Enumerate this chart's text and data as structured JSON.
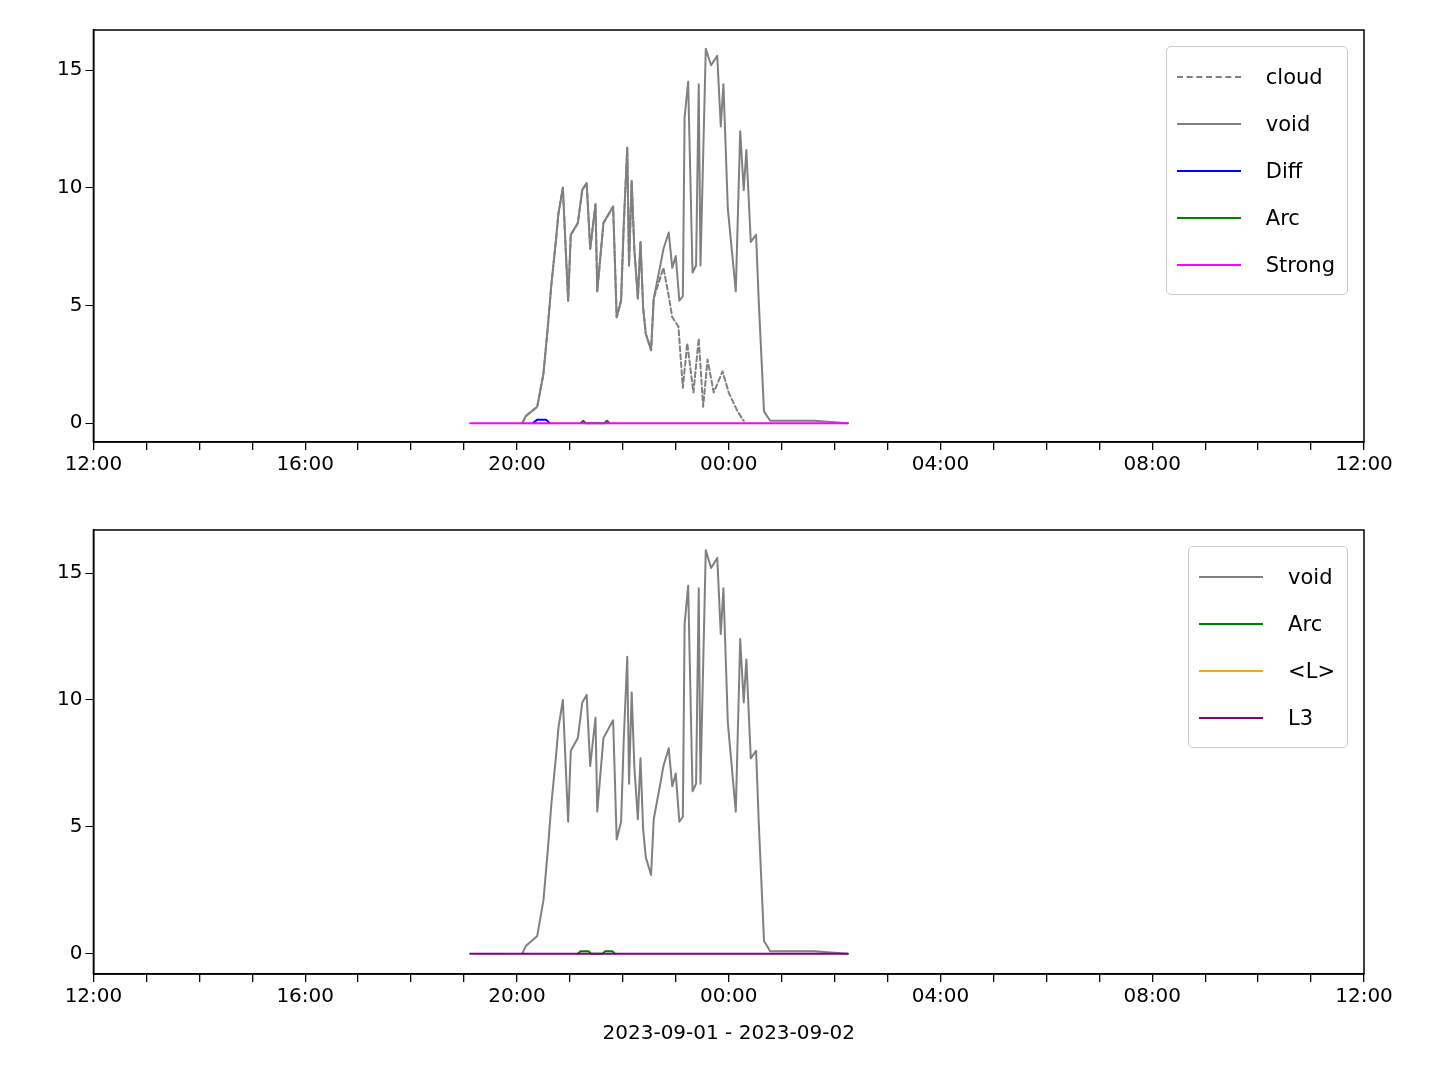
{
  "chart_data": [
    {
      "type": "line",
      "legend": "top right",
      "grid": false,
      "xlim": [
        "2023-09-01T12:00",
        "2023-09-02T12:00"
      ],
      "ylim": [
        -0.8,
        16.7
      ],
      "yticks": [
        0,
        5,
        10,
        15
      ],
      "xticks": [
        {
          "value": "2023-09-01T12:00",
          "label": "12:00"
        },
        {
          "value": "2023-09-01T13:00",
          "label": null
        },
        {
          "value": "2023-09-01T14:00",
          "label": null
        },
        {
          "value": "2023-09-01T15:00",
          "label": null
        },
        {
          "value": "2023-09-01T16:00",
          "label": "16:00"
        },
        {
          "value": "2023-09-01T17:00",
          "label": null
        },
        {
          "value": "2023-09-01T18:00",
          "label": null
        },
        {
          "value": "2023-09-01T19:00",
          "label": null
        },
        {
          "value": "2023-09-01T20:00",
          "label": "20:00"
        },
        {
          "value": "2023-09-01T21:00",
          "label": null
        },
        {
          "value": "2023-09-01T22:00",
          "label": null
        },
        {
          "value": "2023-09-01T23:00",
          "label": null
        },
        {
          "value": "2023-09-02T00:00",
          "label": "00:00"
        },
        {
          "value": "2023-09-02T01:00",
          "label": null
        },
        {
          "value": "2023-09-02T02:00",
          "label": null
        },
        {
          "value": "2023-09-02T03:00",
          "label": null
        },
        {
          "value": "2023-09-02T04:00",
          "label": "04:00"
        },
        {
          "value": "2023-09-02T05:00",
          "label": null
        },
        {
          "value": "2023-09-02T06:00",
          "label": null
        },
        {
          "value": "2023-09-02T07:00",
          "label": null
        },
        {
          "value": "2023-09-02T08:00",
          "label": "08:00"
        },
        {
          "value": "2023-09-02T09:00",
          "label": null
        },
        {
          "value": "2023-09-02T10:00",
          "label": null
        },
        {
          "value": "2023-09-02T11:00",
          "label": null
        },
        {
          "value": "2023-09-02T12:00",
          "label": "12:00"
        }
      ],
      "series": [
        {
          "name": "cloud",
          "color": "#808080",
          "line_style": "dashed",
          "x": [
            "2023-09-01T20:06",
            "2023-09-01T20:10",
            "2023-09-01T20:23",
            "2023-09-01T20:30",
            "2023-09-01T20:35",
            "2023-09-01T20:39",
            "2023-09-01T20:44",
            "2023-09-01T20:47",
            "2023-09-01T20:52",
            "2023-09-01T20:58",
            "2023-09-01T21:01",
            "2023-09-01T21:09",
            "2023-09-01T21:14",
            "2023-09-01T21:19",
            "2023-09-01T21:23",
            "2023-09-01T21:29",
            "2023-09-01T21:31",
            "2023-09-01T21:38",
            "2023-09-01T21:49",
            "2023-09-01T21:53",
            "2023-09-01T21:58",
            "2023-09-01T22:01",
            "2023-09-01T22:05",
            "2023-09-01T22:07",
            "2023-09-01T22:10",
            "2023-09-01T22:13",
            "2023-09-01T22:17",
            "2023-09-01T22:20",
            "2023-09-01T22:23",
            "2023-09-01T22:26",
            "2023-09-01T22:32",
            "2023-09-01T22:35",
            "2023-09-01T22:46",
            "2023-09-01T22:52",
            "2023-09-01T22:56",
            "2023-09-01T23:03",
            "2023-09-01T23:08",
            "2023-09-01T23:13",
            "2023-09-01T23:20",
            "2023-09-01T23:26",
            "2023-09-01T23:31",
            "2023-09-01T23:36",
            "2023-09-01T23:43",
            "2023-09-01T23:53",
            "2023-09-02T00:00",
            "2023-09-02T00:10",
            "2023-09-02T00:17"
          ],
          "values": [
            0,
            0.3,
            0.7,
            2.1,
            4.1,
            5.9,
            7.7,
            8.9,
            10.0,
            5.2,
            8.0,
            8.5,
            9.9,
            10.2,
            7.4,
            9.3,
            5.6,
            8.5,
            9.2,
            4.5,
            5.2,
            8.4,
            11.7,
            6.7,
            10.3,
            7.4,
            5.3,
            7.7,
            4.9,
            3.8,
            3.1,
            5.3,
            6.6,
            5.4,
            4.5,
            4.1,
            1.5,
            3.4,
            1.3,
            3.6,
            0.7,
            2.7,
            1.3,
            2.2,
            1.3,
            0.5,
            0.1
          ]
        },
        {
          "name": "void",
          "color": "#808080",
          "x": [
            "2023-09-01T20:06",
            "2023-09-01T20:10",
            "2023-09-01T20:23",
            "2023-09-01T20:30",
            "2023-09-01T20:35",
            "2023-09-01T20:39",
            "2023-09-01T20:44",
            "2023-09-01T20:47",
            "2023-09-01T20:52",
            "2023-09-01T20:58",
            "2023-09-01T21:01",
            "2023-09-01T21:09",
            "2023-09-01T21:14",
            "2023-09-01T21:19",
            "2023-09-01T21:23",
            "2023-09-01T21:29",
            "2023-09-01T21:31",
            "2023-09-01T21:38",
            "2023-09-01T21:49",
            "2023-09-01T21:53",
            "2023-09-01T21:58",
            "2023-09-01T22:01",
            "2023-09-01T22:05",
            "2023-09-01T22:07",
            "2023-09-01T22:10",
            "2023-09-01T22:13",
            "2023-09-01T22:17",
            "2023-09-01T22:20",
            "2023-09-01T22:23",
            "2023-09-01T22:26",
            "2023-09-01T22:32",
            "2023-09-01T22:35",
            "2023-09-01T22:43",
            "2023-09-01T22:46",
            "2023-09-01T22:52",
            "2023-09-01T22:56",
            "2023-09-01T23:00",
            "2023-09-01T23:04",
            "2023-09-01T23:08",
            "2023-09-01T23:10",
            "2023-09-01T23:14",
            "2023-09-01T23:19",
            "2023-09-01T23:23",
            "2023-09-01T23:26",
            "2023-09-01T23:28",
            "2023-09-01T23:34",
            "2023-09-01T23:40",
            "2023-09-01T23:47",
            "2023-09-01T23:51",
            "2023-09-01T23:54",
            "2023-09-01T23:59",
            "2023-09-02T00:08",
            "2023-09-02T00:13",
            "2023-09-02T00:17",
            "2023-09-02T00:20",
            "2023-09-02T00:25",
            "2023-09-02T00:31",
            "2023-09-02T00:34",
            "2023-09-02T00:40",
            "2023-09-02T00:47",
            "2023-09-02T01:37",
            "2023-09-02T02:15"
          ],
          "values": [
            0,
            0.3,
            0.7,
            2.1,
            4.1,
            5.9,
            7.7,
            8.9,
            10.0,
            5.2,
            8.0,
            8.5,
            9.9,
            10.2,
            7.4,
            9.3,
            5.6,
            8.5,
            9.2,
            4.5,
            5.2,
            8.4,
            11.7,
            6.7,
            10.3,
            7.4,
            5.3,
            7.7,
            4.9,
            3.8,
            3.1,
            5.3,
            6.8,
            7.4,
            8.1,
            6.6,
            7.1,
            5.2,
            5.4,
            13.0,
            14.5,
            6.4,
            6.7,
            14.4,
            6.7,
            15.9,
            15.2,
            15.6,
            12.6,
            14.4,
            9.1,
            5.6,
            12.4,
            9.9,
            11.6,
            7.7,
            8.0,
            5.2,
            0.5,
            0.1,
            0.1,
            0
          ]
        },
        {
          "name": "Diff",
          "color": "#0000ff",
          "x": [
            "2023-09-01T20:18",
            "2023-09-01T20:23",
            "2023-09-01T20:33",
            "2023-09-01T20:37"
          ],
          "values": [
            0,
            0.15,
            0.15,
            0
          ]
        },
        {
          "name": "Arc",
          "color": "#008000",
          "x": [
            "2023-09-01T21:12",
            "2023-09-01T21:15",
            "2023-09-01T21:18",
            "2023-09-01T21:39",
            "2023-09-01T21:42",
            "2023-09-01T21:45"
          ],
          "values": [
            0,
            0.1,
            0,
            0,
            0.1,
            0
          ]
        },
        {
          "name": "Strong",
          "color": "#ff00ff",
          "x": [
            "2023-09-01T19:07",
            "2023-09-02T02:15"
          ],
          "values": [
            0,
            0
          ]
        }
      ]
    },
    {
      "type": "line",
      "legend": "top right",
      "grid": false,
      "xlabel": "2023-09-01 - 2023-09-02",
      "xlim": [
        "2023-09-01T12:00",
        "2023-09-02T12:00"
      ],
      "ylim": [
        -0.8,
        16.7
      ],
      "yticks": [
        0,
        5,
        10,
        15
      ],
      "xticks": [
        {
          "value": "2023-09-01T12:00",
          "label": "12:00"
        },
        {
          "value": "2023-09-01T13:00",
          "label": null
        },
        {
          "value": "2023-09-01T14:00",
          "label": null
        },
        {
          "value": "2023-09-01T15:00",
          "label": null
        },
        {
          "value": "2023-09-01T16:00",
          "label": "16:00"
        },
        {
          "value": "2023-09-01T17:00",
          "label": null
        },
        {
          "value": "2023-09-01T18:00",
          "label": null
        },
        {
          "value": "2023-09-01T19:00",
          "label": null
        },
        {
          "value": "2023-09-01T20:00",
          "label": "20:00"
        },
        {
          "value": "2023-09-01T21:00",
          "label": null
        },
        {
          "value": "2023-09-01T22:00",
          "label": null
        },
        {
          "value": "2023-09-01T23:00",
          "label": null
        },
        {
          "value": "2023-09-02T00:00",
          "label": "00:00"
        },
        {
          "value": "2023-09-02T01:00",
          "label": null
        },
        {
          "value": "2023-09-02T02:00",
          "label": null
        },
        {
          "value": "2023-09-02T03:00",
          "label": null
        },
        {
          "value": "2023-09-02T04:00",
          "label": "04:00"
        },
        {
          "value": "2023-09-02T05:00",
          "label": null
        },
        {
          "value": "2023-09-02T06:00",
          "label": null
        },
        {
          "value": "2023-09-02T07:00",
          "label": null
        },
        {
          "value": "2023-09-02T08:00",
          "label": "08:00"
        },
        {
          "value": "2023-09-02T09:00",
          "label": null
        },
        {
          "value": "2023-09-02T10:00",
          "label": null
        },
        {
          "value": "2023-09-02T11:00",
          "label": null
        },
        {
          "value": "2023-09-02T12:00",
          "label": "12:00"
        }
      ],
      "series": [
        {
          "name": "void",
          "color": "#808080",
          "x": [
            "2023-09-01T20:06",
            "2023-09-01T20:10",
            "2023-09-01T20:23",
            "2023-09-01T20:30",
            "2023-09-01T20:35",
            "2023-09-01T20:39",
            "2023-09-01T20:44",
            "2023-09-01T20:47",
            "2023-09-01T20:52",
            "2023-09-01T20:58",
            "2023-09-01T21:01",
            "2023-09-01T21:09",
            "2023-09-01T21:14",
            "2023-09-01T21:19",
            "2023-09-01T21:23",
            "2023-09-01T21:29",
            "2023-09-01T21:31",
            "2023-09-01T21:38",
            "2023-09-01T21:49",
            "2023-09-01T21:53",
            "2023-09-01T21:58",
            "2023-09-01T22:01",
            "2023-09-01T22:05",
            "2023-09-01T22:07",
            "2023-09-01T22:10",
            "2023-09-01T22:13",
            "2023-09-01T22:17",
            "2023-09-01T22:20",
            "2023-09-01T22:23",
            "2023-09-01T22:26",
            "2023-09-01T22:32",
            "2023-09-01T22:35",
            "2023-09-01T22:43",
            "2023-09-01T22:46",
            "2023-09-01T22:52",
            "2023-09-01T22:56",
            "2023-09-01T23:00",
            "2023-09-01T23:04",
            "2023-09-01T23:08",
            "2023-09-01T23:10",
            "2023-09-01T23:14",
            "2023-09-01T23:19",
            "2023-09-01T23:23",
            "2023-09-01T23:26",
            "2023-09-01T23:28",
            "2023-09-01T23:34",
            "2023-09-01T23:40",
            "2023-09-01T23:47",
            "2023-09-01T23:51",
            "2023-09-01T23:54",
            "2023-09-01T23:59",
            "2023-09-02T00:08",
            "2023-09-02T00:13",
            "2023-09-02T00:17",
            "2023-09-02T00:20",
            "2023-09-02T00:25",
            "2023-09-02T00:31",
            "2023-09-02T00:34",
            "2023-09-02T00:40",
            "2023-09-02T00:47",
            "2023-09-02T01:37",
            "2023-09-02T02:15"
          ],
          "values": [
            0,
            0.3,
            0.7,
            2.1,
            4.1,
            5.9,
            7.7,
            8.9,
            10.0,
            5.2,
            8.0,
            8.5,
            9.9,
            10.2,
            7.4,
            9.3,
            5.6,
            8.5,
            9.2,
            4.5,
            5.2,
            8.4,
            11.7,
            6.7,
            10.3,
            7.4,
            5.3,
            7.7,
            4.9,
            3.8,
            3.1,
            5.3,
            6.8,
            7.4,
            8.1,
            6.6,
            7.1,
            5.2,
            5.4,
            13.0,
            14.5,
            6.4,
            6.7,
            14.4,
            6.7,
            15.9,
            15.2,
            15.6,
            12.6,
            14.4,
            9.1,
            5.6,
            12.4,
            9.9,
            11.6,
            7.7,
            8.0,
            5.2,
            0.5,
            0.1,
            0.1,
            0
          ]
        },
        {
          "name": "Arc",
          "color": "#008000",
          "x": [
            "2023-09-01T21:09",
            "2023-09-01T21:12",
            "2023-09-01T21:21",
            "2023-09-01T21:24",
            "2023-09-01T21:37",
            "2023-09-01T21:40",
            "2023-09-01T21:48",
            "2023-09-01T21:51"
          ],
          "values": [
            0,
            0.1,
            0.1,
            0,
            0,
            0.1,
            0.1,
            0
          ]
        },
        {
          "name": "<L>",
          "color": "#ffa500"
        },
        {
          "name": "L3",
          "color": "#800080",
          "x": [
            "2023-09-01T19:07",
            "2023-09-02T02:15"
          ],
          "values": [
            0,
            0
          ]
        }
      ]
    }
  ]
}
